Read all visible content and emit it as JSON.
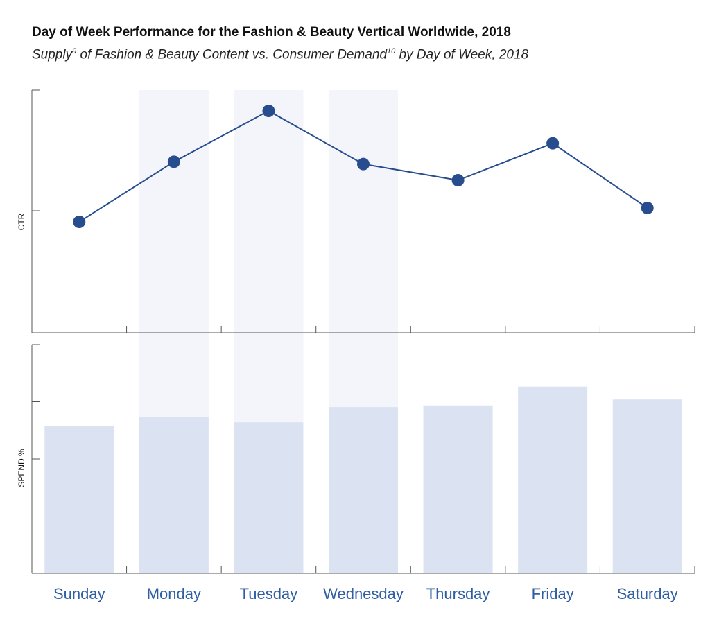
{
  "header": {
    "title": "Day of Week Performance for the Fashion & Beauty Vertical Worldwide, 2018",
    "subtitle_supply": "Supply",
    "subtitle_sup1": "9",
    "subtitle_mid": " of Fashion & Beauty Content vs. Consumer Demand",
    "subtitle_sup2": "10",
    "subtitle_end": " by Day of Week, 2018"
  },
  "colors": {
    "line": "#274d8f",
    "bar": "#dbe2f2",
    "highlight": "#f3f5fb",
    "tick_text": "#2f5ea3",
    "axis": "#555555"
  },
  "chart_data": [
    {
      "type": "line",
      "categories": [
        "Sunday",
        "Monday",
        "Tuesday",
        "Wednesday",
        "Thursday",
        "Friday",
        "Saturday"
      ],
      "values": [
        48,
        74,
        96,
        73,
        66,
        82,
        54
      ],
      "ylabel": "CTR",
      "ylim": [
        0,
        105
      ],
      "highlighted_categories": [
        "Monday",
        "Tuesday",
        "Wednesday"
      ],
      "grid": false
    },
    {
      "type": "bar",
      "categories": [
        "Sunday",
        "Monday",
        "Tuesday",
        "Wednesday",
        "Thursday",
        "Friday",
        "Saturday"
      ],
      "values": [
        64.5,
        68.3,
        66,
        72.7,
        73.4,
        81.6,
        76
      ],
      "ylabel": "SPEND %",
      "ylim": [
        0,
        100
      ],
      "highlighted_categories": [
        "Monday",
        "Tuesday",
        "Wednesday"
      ],
      "grid": false
    }
  ]
}
